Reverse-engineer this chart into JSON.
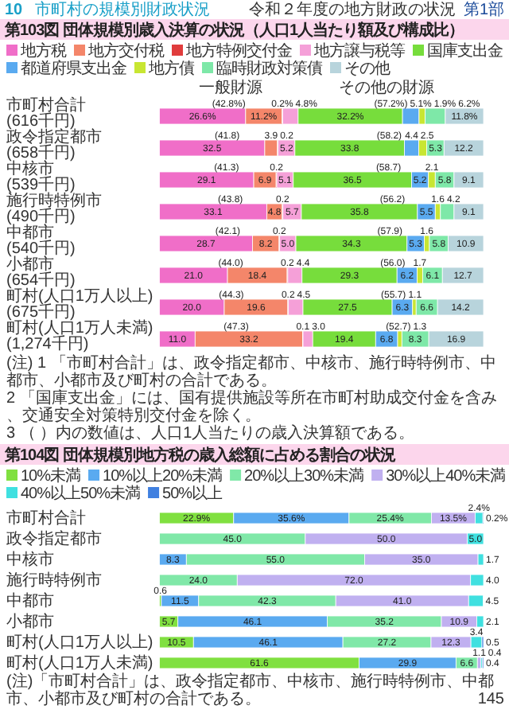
{
  "chart_data": [
    {
      "type": "bar",
      "orientation": "horizontal",
      "stacked": true,
      "title": "第103図 団体規模別歳入決算の状況（人口1人当たり額及び構成比）",
      "legend": "top",
      "tick_labels": "y",
      "xlim": [
        0,
        100
      ],
      "categories": [
        "市町村合計\n(616千円)",
        "政令指定都市\n(658千円)",
        "中核市\n(539千円)",
        "施行時特例市\n(490千円)",
        "中都市\n(540千円)",
        "小都市\n(654千円)",
        "町村(人口1万人以上)\n(675千円)",
        "町村(人口1万人未満)\n(1,274千円)"
      ],
      "series": [
        {
          "name": "地方税",
          "color": "#f06ec8",
          "values": [
            26.6,
            32.5,
            29.1,
            33.1,
            28.7,
            21.0,
            20.0,
            11.0
          ],
          "value_labels": [
            "26.6%",
            "32.5",
            "29.1",
            "33.1",
            "28.7",
            "21.0",
            "20.0",
            "11.0"
          ]
        },
        {
          "name": "地方交付税",
          "color": "#f4866a",
          "values": [
            11.2,
            3.9,
            6.9,
            4.8,
            8.2,
            18.4,
            19.6,
            33.2
          ],
          "value_labels": [
            "11.2%",
            "3.9",
            "6.9",
            "4.8",
            "8.2",
            "18.4",
            "19.6",
            "33.2"
          ]
        },
        {
          "name": "地方特例交付金",
          "color": "#e03c3c",
          "values": [
            0.2,
            0.2,
            0.2,
            0.2,
            0.2,
            0.2,
            0.2,
            0.1
          ],
          "value_labels": [
            "0.2%",
            "0.2",
            "0.2",
            "0.2",
            "0.2",
            "0.2",
            "0.2",
            "0.1"
          ]
        },
        {
          "name": "地方譲与税等",
          "color": "#f5a0d8",
          "values": [
            4.8,
            5.2,
            5.1,
            5.7,
            5.0,
            4.4,
            4.5,
            3.0
          ],
          "value_labels": [
            "4.8%",
            "5.2",
            "5.1",
            "5.7",
            "5.0",
            "4.4",
            "4.5",
            "3.0"
          ]
        },
        {
          "name": "国庫支出金",
          "color": "#77dd3c",
          "values": [
            32.2,
            33.8,
            36.5,
            35.8,
            34.3,
            29.3,
            27.5,
            19.4
          ],
          "value_labels": [
            "32.2%",
            "33.8",
            "36.5",
            "35.8",
            "34.3",
            "29.3",
            "27.5",
            "19.4"
          ]
        },
        {
          "name": "都道府県支出金",
          "color": "#5aaaf0",
          "values": [
            5.1,
            4.4,
            5.2,
            5.5,
            5.3,
            6.2,
            6.3,
            6.8
          ],
          "value_labels": [
            "5.1%",
            "4.4",
            "5.2",
            "5.5",
            "5.3",
            "6.2",
            "6.3",
            "6.8"
          ]
        },
        {
          "name": "地方債",
          "color": "#c8e632",
          "values": [
            1.9,
            2.5,
            2.1,
            1.6,
            1.6,
            1.7,
            1.1,
            1.3
          ],
          "value_labels": [
            "1.9%",
            "2.5",
            "2.1",
            "1.6",
            "1.6",
            "1.7",
            "1.1",
            "1.3"
          ]
        },
        {
          "name": "臨時財政対策債",
          "color": "#7ee8a8",
          "values": [
            6.2,
            5.3,
            5.8,
            4.2,
            5.8,
            6.1,
            6.6,
            8.3
          ],
          "value_labels": [
            "6.2%",
            "5.3",
            "5.8",
            "4.2",
            "5.8",
            "6.1",
            "6.6",
            "8.3"
          ]
        },
        {
          "name": "その他",
          "color": "#b8d4dc",
          "values": [
            11.8,
            12.2,
            9.1,
            9.1,
            10.9,
            12.7,
            14.2,
            16.9
          ],
          "value_labels": [
            "11.8%",
            "12.2",
            "9.1",
            "9.1",
            "10.9",
            "12.7",
            "14.2",
            "16.9"
          ]
        }
      ],
      "annotations": [
        "令和２年度の地方財政の状況",
        "第1部",
        "10",
        "市町村の規模別財政状況",
        "一般財源",
        "その他の財源",
        {
          "text": "(42.8%)",
          "x": 21.4,
          "y": "市町村合計\n(616千円)"
        },
        {
          "text": "(57.2%)",
          "x": 71.4,
          "y": "市町村合計\n(616千円)"
        },
        {
          "text": "(41.8)",
          "x": 20.9,
          "y": "政令指定都市\n(658千円)"
        },
        {
          "text": "(58.2)",
          "x": 70.9,
          "y": "政令指定都市\n(658千円)"
        },
        {
          "text": "(41.3)",
          "x": 20.7,
          "y": "中核市\n(539千円)"
        },
        {
          "text": "(58.7)",
          "x": 70.7,
          "y": "中核市\n(539千円)"
        },
        {
          "text": "(43.8)",
          "x": 21.9,
          "y": "施行時特例市\n(490千円)"
        },
        {
          "text": "(56.2)",
          "x": 71.9,
          "y": "施行時特例市\n(490千円)"
        },
        {
          "text": "(42.1)",
          "x": 21.1,
          "y": "中都市\n(540千円)"
        },
        {
          "text": "(57.9)",
          "x": 71.1,
          "y": "中都市\n(540千円)"
        },
        {
          "text": "(44.0)",
          "x": 22.0,
          "y": "小都市\n(654千円)"
        },
        {
          "text": "(56.0)",
          "x": 72.0,
          "y": "小都市\n(654千円)"
        },
        {
          "text": "(44.3)",
          "x": 22.2,
          "y": "町村(人口1万人以上)\n(675千円)"
        },
        {
          "text": "(55.7)",
          "x": 72.2,
          "y": "町村(人口1万人以上)\n(675千円)"
        },
        {
          "text": "(47.3)",
          "x": 23.7,
          "y": "町村(人口1万人未満)\n(1,274千円)"
        },
        {
          "text": "(52.7)",
          "x": 73.7,
          "y": "町村(人口1万人未満)\n(1,274千円)"
        },
        "(注) 1 「市町村合計」は、政令指定都市、中核市、施行時特例市、中都市、小都市及び町村の合計である。",
        "2 「国庫支出金」には、国有提供施設等所在市町村助成交付金を含み、交通安全対策特別交付金を除く。",
        "3 （ ）内の数値は、人口1人当たりの歳入決算額である。"
      ]
    },
    {
      "type": "bar",
      "orientation": "horizontal",
      "stacked": true,
      "title": "第104図 団体規模別地方税の歳入総額に占める割合の状況",
      "legend": "top",
      "tick_labels": "y",
      "xlim": [
        0,
        100
      ],
      "categories": [
        "市町村合計",
        "政令指定都市",
        "中核市",
        "施行時特例市",
        "中都市",
        "小都市",
        "町村(人口1万人以上)",
        "町村(人口1万人未満)"
      ],
      "series": [
        {
          "name": "10%未満",
          "color": "#80e040",
          "values": [
            22.9,
            null,
            null,
            null,
            0.6,
            5.7,
            10.5,
            61.6
          ],
          "value_labels": [
            "22.9%",
            null,
            null,
            null,
            "0.6",
            "5.7",
            "10.5",
            "61.6"
          ]
        },
        {
          "name": "10%以上20%未満",
          "color": "#5aaaf0",
          "values": [
            35.6,
            null,
            8.3,
            null,
            11.5,
            46.1,
            46.1,
            29.9
          ],
          "value_labels": [
            "35.6%",
            null,
            "8.3",
            null,
            "11.5",
            "46.1",
            "46.1",
            "29.9"
          ]
        },
        {
          "name": "20%以上30%未満",
          "color": "#80e8a8",
          "values": [
            25.4,
            45.0,
            55.0,
            24.0,
            42.3,
            35.2,
            27.2,
            6.6
          ],
          "value_labels": [
            "25.4%",
            "45.0",
            "55.0",
            "24.0",
            "42.3",
            "35.2",
            "27.2",
            "6.6"
          ]
        },
        {
          "name": "30%以上40%未満",
          "color": "#c0b0f0",
          "values": [
            13.5,
            50.0,
            35.0,
            72.0,
            41.0,
            10.9,
            12.3,
            1.1
          ],
          "value_labels": [
            "13.5%",
            "50.0",
            "35.0",
            "72.0",
            "41.0",
            "10.9",
            "12.3",
            "1.1"
          ]
        },
        {
          "name": "40%以上50%未満",
          "color": "#40e0e0",
          "values": [
            2.4,
            5.0,
            1.7,
            4.0,
            4.5,
            2.1,
            3.4,
            0.4
          ],
          "value_labels": [
            "2.4%",
            "5.0",
            "1.7",
            "4.0",
            "4.5",
            "2.1",
            "3.4",
            "0.4"
          ]
        },
        {
          "name": "50%以上",
          "color": "#4080e0",
          "values": [
            0.2,
            null,
            null,
            null,
            null,
            null,
            0.5,
            0.4
          ],
          "value_labels": [
            "0.2%",
            null,
            null,
            null,
            null,
            null,
            "0.5",
            "0.4"
          ]
        }
      ],
      "annotations": [
        "(注)「市町村合計」は、政令指定都市、中核市、施行時特例市、中都市、小都市及び町村の合計である。",
        "145"
      ]
    }
  ]
}
